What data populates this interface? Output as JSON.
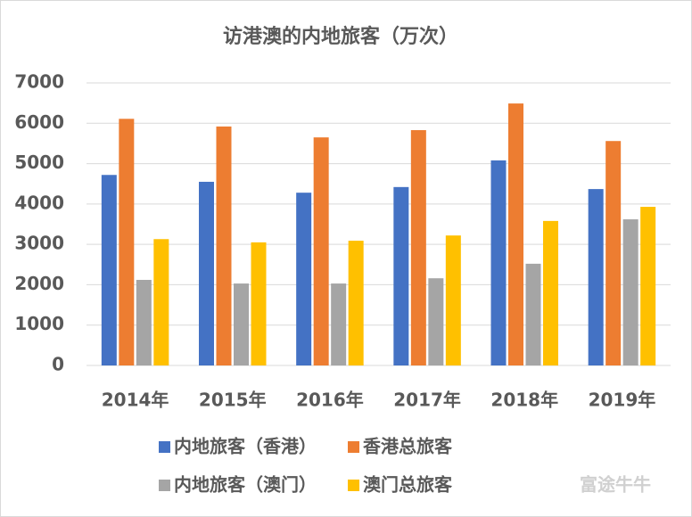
{
  "chart_data": {
    "type": "bar",
    "title": "访港澳的内地旅客（万次）",
    "categories": [
      "2014年",
      "2015年",
      "2016年",
      "2017年",
      "2018年",
      "2019年"
    ],
    "series": [
      {
        "name": "内地旅客（香港）",
        "color": "#4472c4",
        "values": [
          4720,
          4550,
          4280,
          4420,
          5080,
          4370
        ]
      },
      {
        "name": "香港总旅客",
        "color": "#ed7d31",
        "values": [
          6110,
          5920,
          5650,
          5830,
          6490,
          5560
        ]
      },
      {
        "name": "内地旅客（澳门）",
        "color": "#a5a5a5",
        "values": [
          2120,
          2030,
          2030,
          2160,
          2520,
          3620
        ]
      },
      {
        "name": "澳门总旅客",
        "color": "#ffc000",
        "values": [
          3130,
          3050,
          3090,
          3220,
          3580,
          3930
        ]
      }
    ],
    "ylim": [
      0,
      7000
    ],
    "yticks": [
      0,
      1000,
      2000,
      3000,
      4000,
      5000,
      6000,
      7000
    ],
    "grid": true,
    "legend": "bottom",
    "watermark": "富途牛牛"
  }
}
